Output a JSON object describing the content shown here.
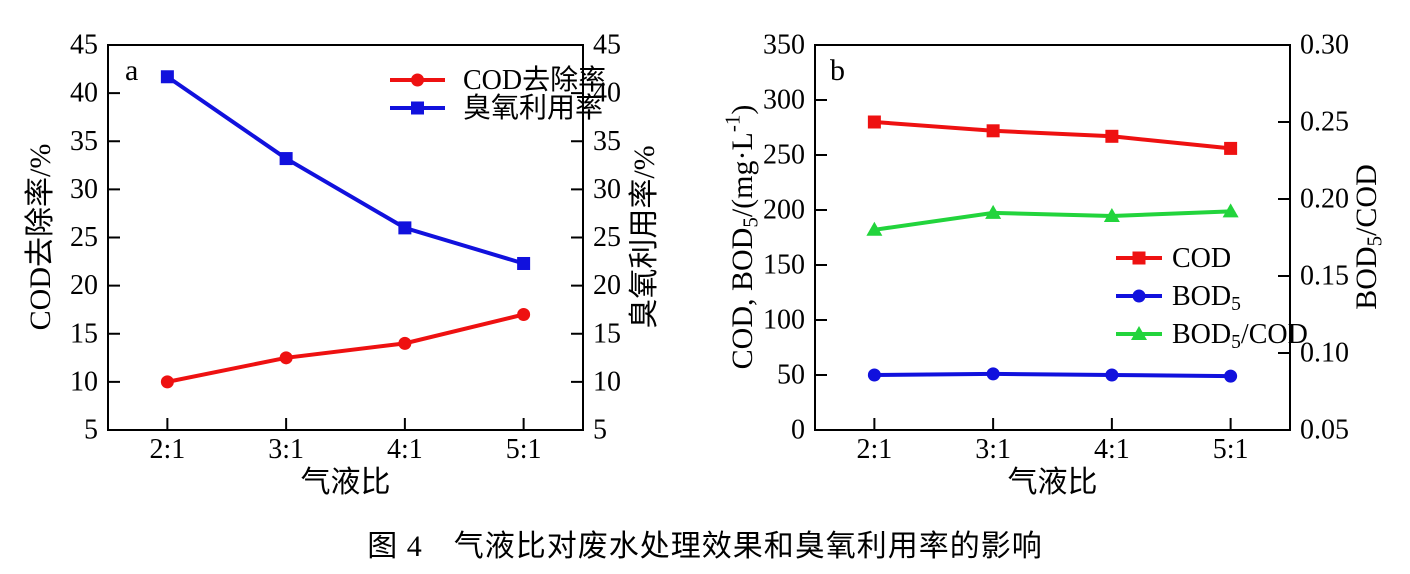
{
  "figure_caption": "图 4　气液比对废水处理效果和臭氧利用率的影响",
  "chart_data": [
    {
      "id": "a",
      "type": "line",
      "panel_label": "a",
      "categories": [
        "2:1",
        "3:1",
        "4:1",
        "5:1"
      ],
      "xlabel": "气液比",
      "left_axis": {
        "label": "COD去除率/%",
        "min": 5,
        "max": 45,
        "step": 5,
        "ticks": [
          "5",
          "10",
          "15",
          "20",
          "25",
          "30",
          "35",
          "40",
          "45"
        ]
      },
      "right_axis": {
        "label": "臭氧利用率/%",
        "min": 5,
        "max": 45,
        "step": 5,
        "ticks": [
          "5",
          "10",
          "15",
          "20",
          "25",
          "30",
          "35",
          "40",
          "45"
        ]
      },
      "legend_position": "top-right-inside",
      "grid": false,
      "series": [
        {
          "name": "COD去除率",
          "axis": "left",
          "color": "#ee1111",
          "marker": "circle",
          "values": [
            10.0,
            12.5,
            14.0,
            17.0
          ]
        },
        {
          "name": "臭氧利用率",
          "axis": "left",
          "color": "#1111dd",
          "marker": "square",
          "values": [
            41.7,
            33.2,
            26.0,
            22.3
          ]
        }
      ]
    },
    {
      "id": "b",
      "type": "line",
      "panel_label": "b",
      "categories": [
        "2:1",
        "3:1",
        "4:1",
        "5:1"
      ],
      "xlabel": "气液比",
      "left_axis": {
        "label": "COD, BOD₅/(mg·L⁻¹)",
        "min": 0,
        "max": 350,
        "step": 50,
        "ticks": [
          "0",
          "50",
          "100",
          "150",
          "200",
          "250",
          "300",
          "350"
        ]
      },
      "right_axis": {
        "label": "BOD₅/COD",
        "min": 0.05,
        "max": 0.3,
        "step": 0.05,
        "ticks": [
          "0.05",
          "0.10",
          "0.15",
          "0.20",
          "0.25",
          "0.30"
        ]
      },
      "legend_position": "middle-right-inside",
      "grid": false,
      "series": [
        {
          "name": "COD",
          "axis": "left",
          "color": "#ee1111",
          "marker": "square",
          "values": [
            280,
            272,
            267,
            256
          ]
        },
        {
          "name": "BOD₅",
          "axis": "left",
          "color": "#1111dd",
          "marker": "circle",
          "values": [
            50,
            51,
            50,
            49
          ]
        },
        {
          "name": "BOD₅/COD",
          "axis": "right",
          "color": "#22d43c",
          "marker": "triangle",
          "values": [
            0.18,
            0.191,
            0.189,
            0.192
          ]
        }
      ]
    }
  ]
}
